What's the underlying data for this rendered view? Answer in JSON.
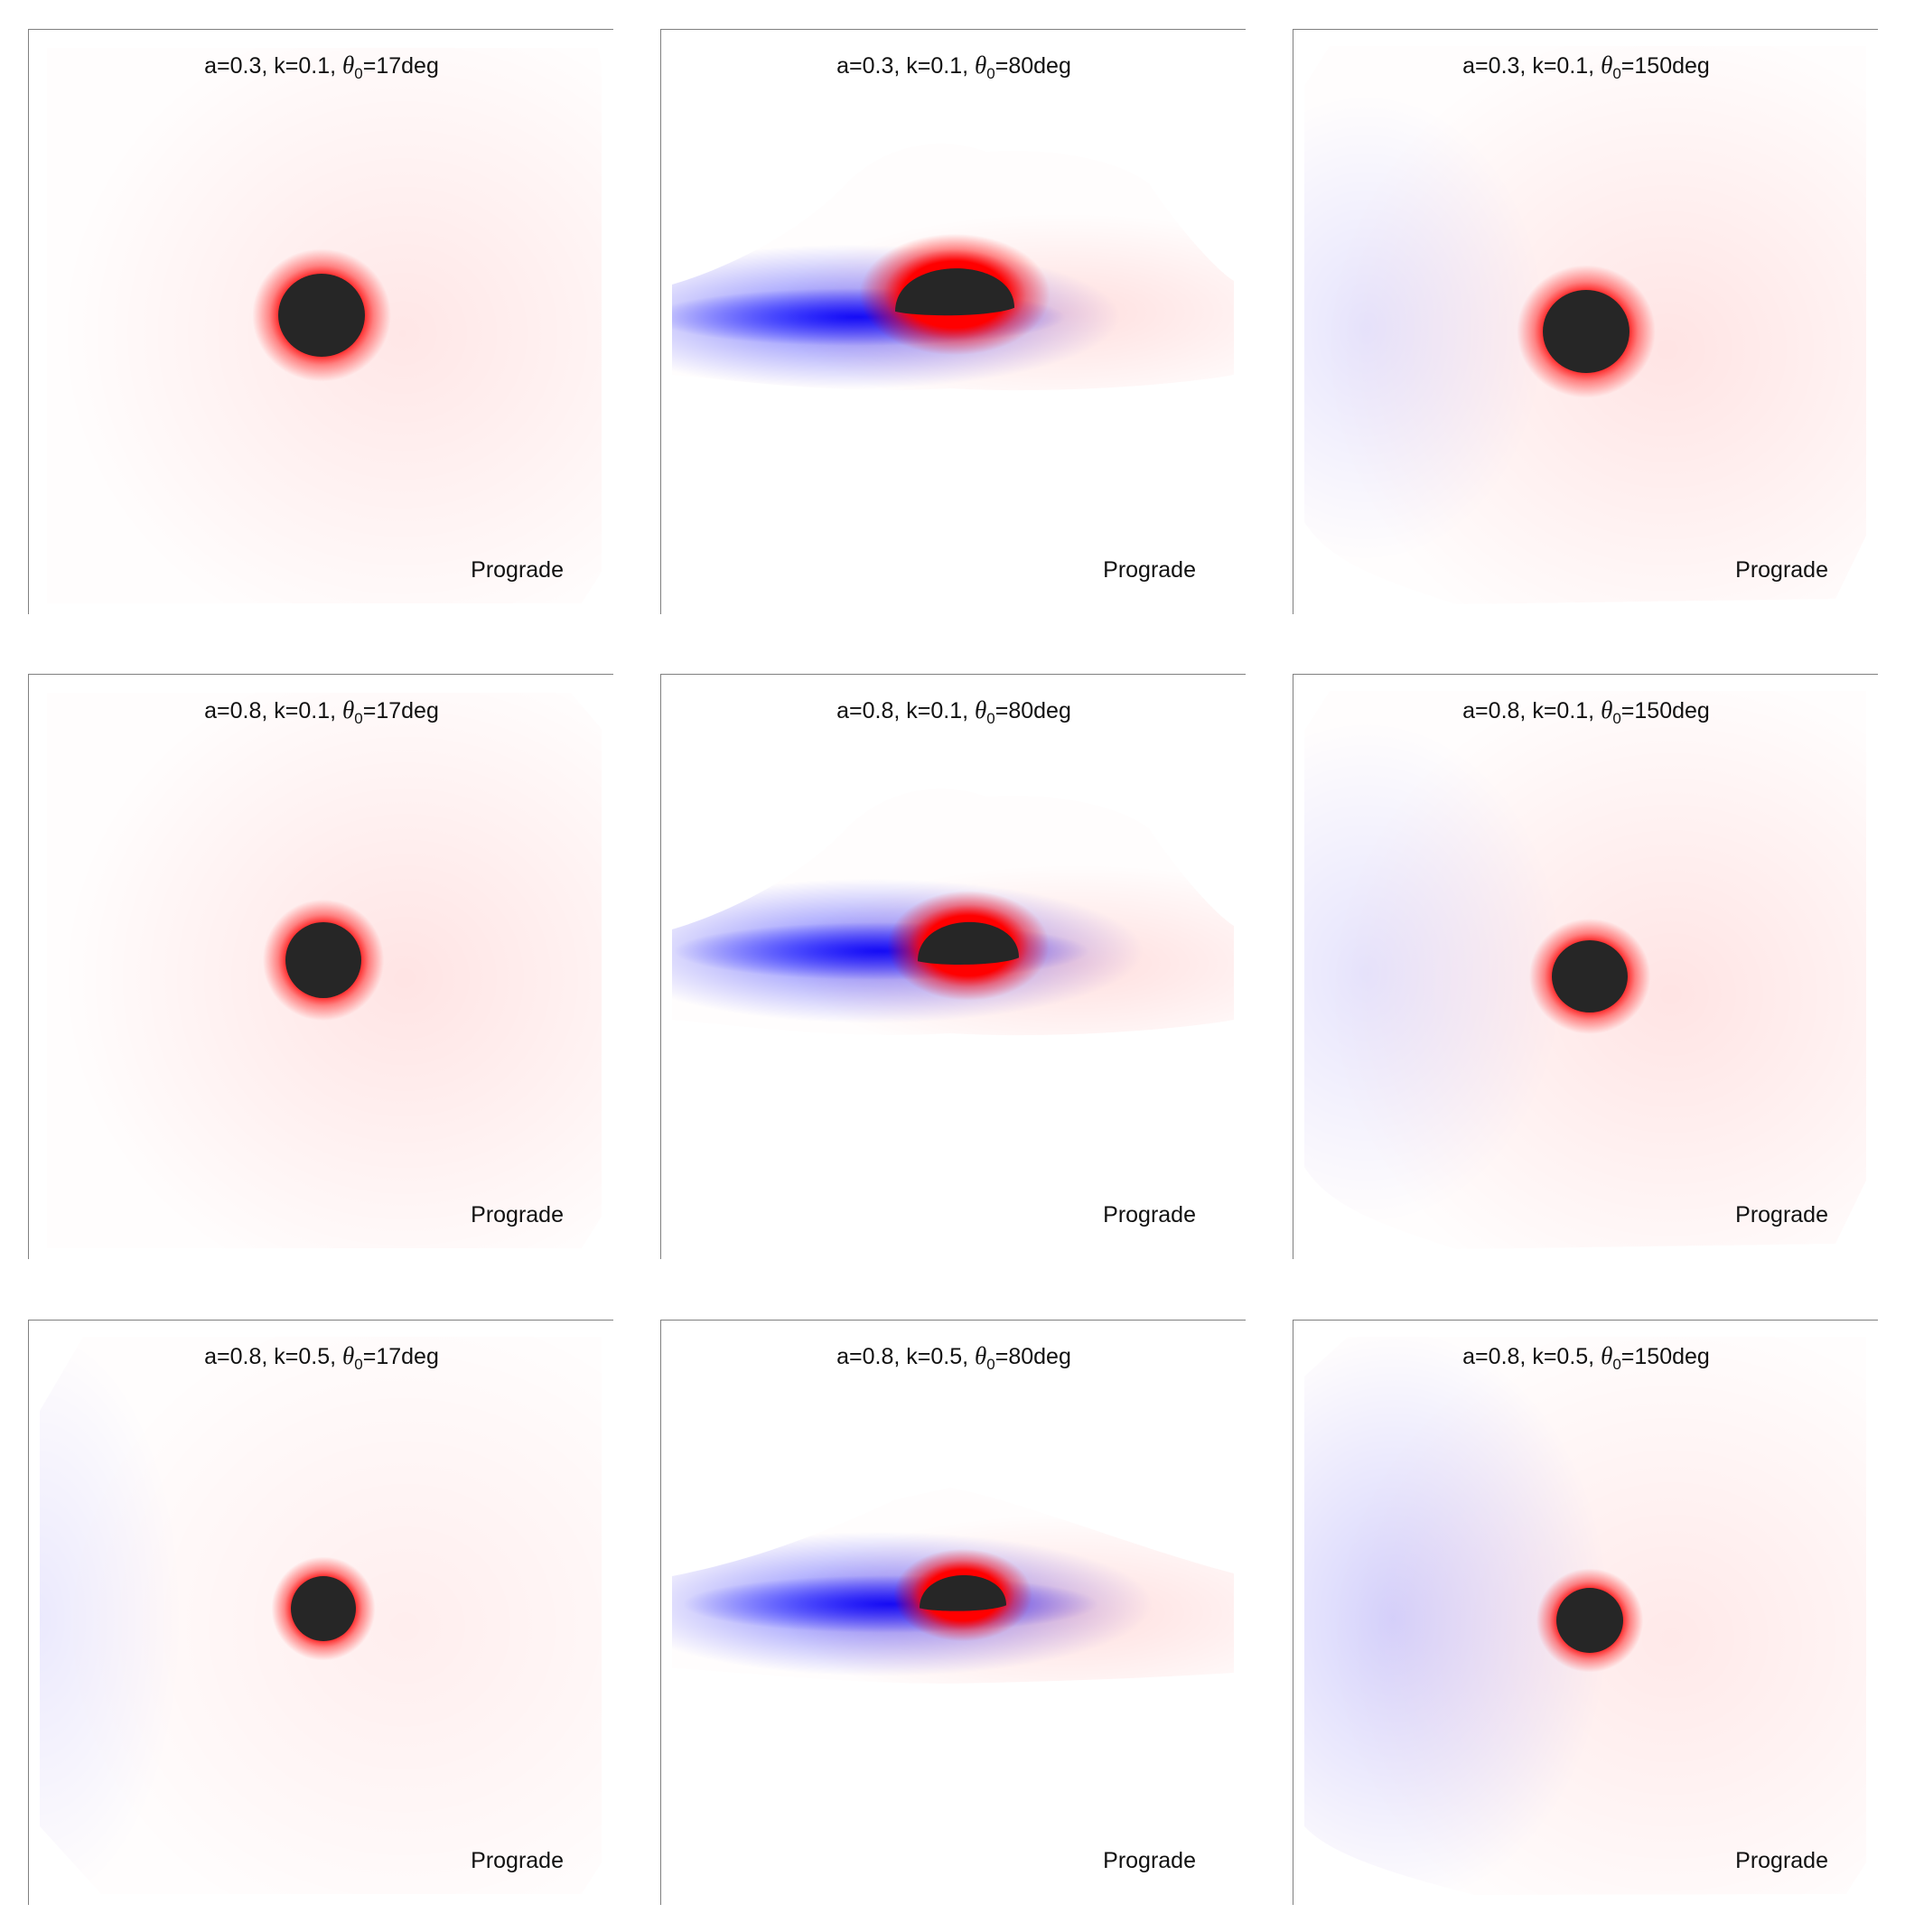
{
  "figure": {
    "background": "#ffffff",
    "shadow_color": "#262626",
    "redshift_color": "#ff0000",
    "blueshift_color": "#0000ff",
    "panels": [
      {
        "a": "0.3",
        "k": "0.1",
        "theta0": "17",
        "label": "Prograde"
      },
      {
        "a": "0.3",
        "k": "0.1",
        "theta0": "80",
        "label": "Prograde"
      },
      {
        "a": "0.3",
        "k": "0.1",
        "theta0": "150",
        "label": "Prograde"
      },
      {
        "a": "0.8",
        "k": "0.1",
        "theta0": "17",
        "label": "Prograde"
      },
      {
        "a": "0.8",
        "k": "0.1",
        "theta0": "80",
        "label": "Prograde"
      },
      {
        "a": "0.8",
        "k": "0.1",
        "theta0": "150",
        "label": "Prograde"
      },
      {
        "a": "0.8",
        "k": "0.5",
        "theta0": "17",
        "label": "Prograde"
      },
      {
        "a": "0.8",
        "k": "0.5",
        "theta0": "80",
        "label": "Prograde"
      },
      {
        "a": "0.8",
        "k": "0.5",
        "theta0": "150",
        "label": "Prograde"
      }
    ]
  },
  "text": {
    "theta_symbol": "θ",
    "theta_subscript": "0",
    "deg_unit": "deg"
  }
}
